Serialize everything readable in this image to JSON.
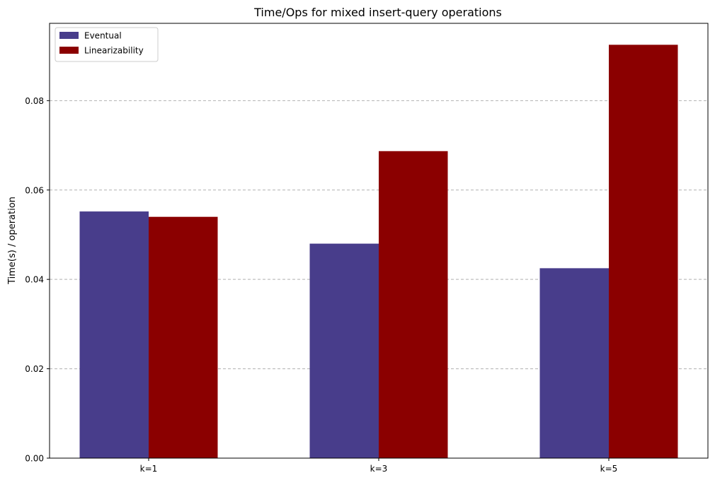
{
  "chart_data": {
    "type": "bar",
    "title": "Time/Ops for mixed insert-query operations",
    "xlabel": "",
    "ylabel": "Time(s) / operation",
    "categories": [
      "k=1",
      "k=3",
      "k=5"
    ],
    "series": [
      {
        "name": "Eventual",
        "color": "#483D8B",
        "values": [
          0.0552,
          0.048,
          0.0425
        ]
      },
      {
        "name": "Linearizability",
        "color": "#8B0000",
        "values": [
          0.054,
          0.0687,
          0.0925
        ]
      }
    ],
    "ylim": [
      0,
      0.0973
    ],
    "yticks": [
      "0.00",
      "0.02",
      "0.04",
      "0.06",
      "0.08"
    ],
    "ytick_values": [
      0,
      0.02,
      0.04,
      0.06,
      0.08
    ],
    "grid": "y-dashed",
    "legend_position": "top-left"
  }
}
